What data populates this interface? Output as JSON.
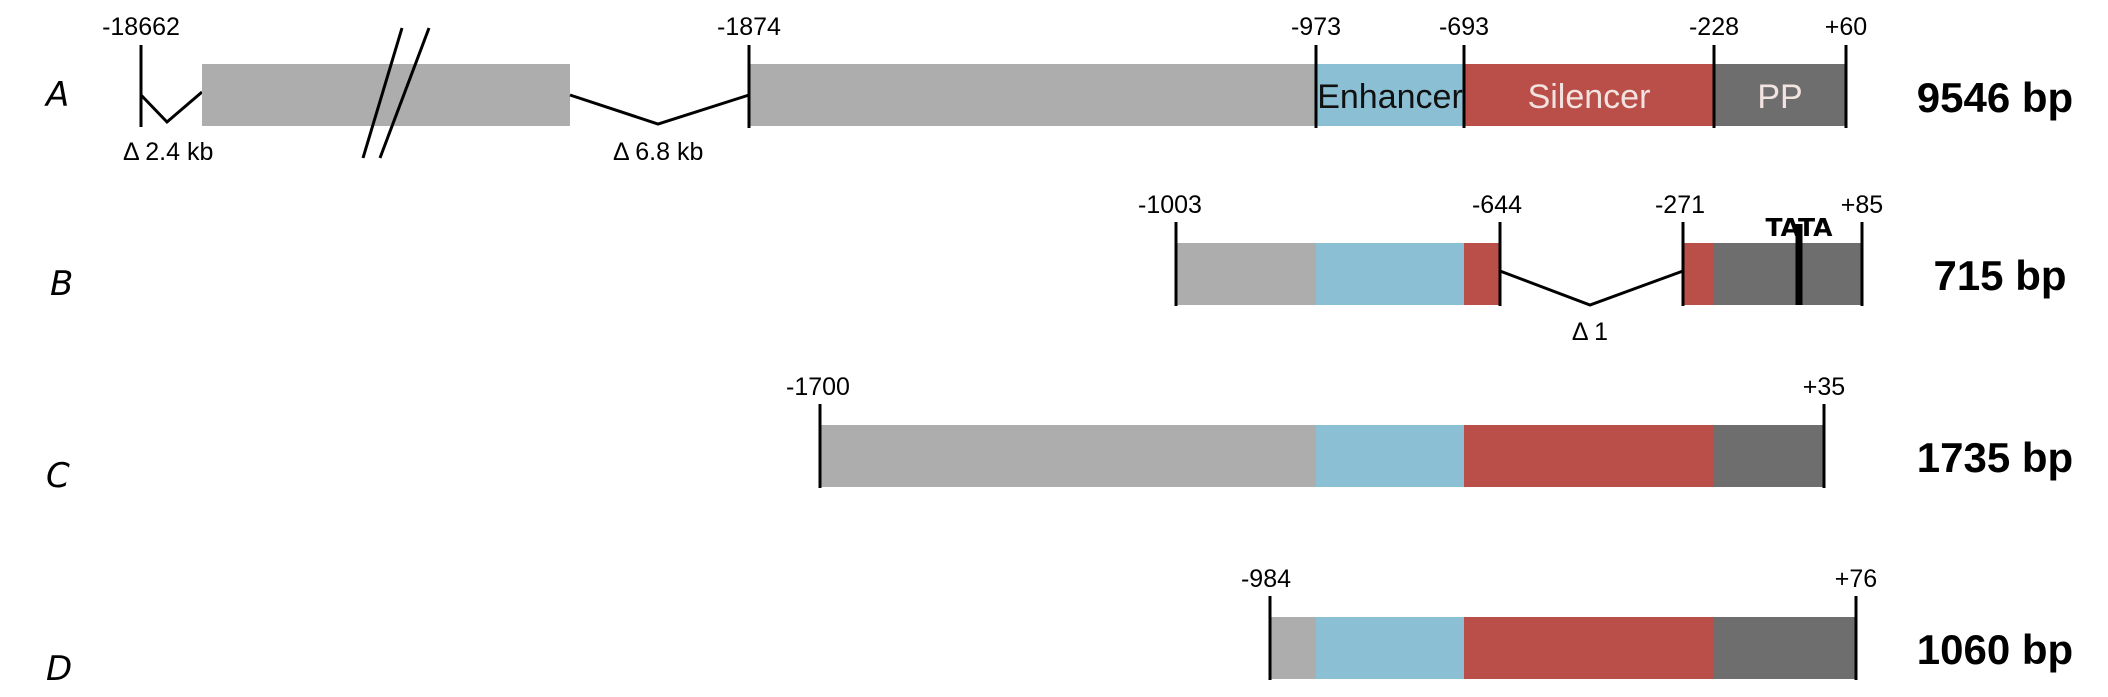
{
  "colors": {
    "upstream": "#adadad",
    "enhancer": "#8bbfd4",
    "silencer": "#b94f48",
    "pp": "#6e6e6e",
    "line": "#000000"
  },
  "labels": {
    "enhancer": "Enhancer",
    "silencer": "Silencer",
    "pp": "PP",
    "tata": "TATA"
  },
  "rows": [
    {
      "letter": "A",
      "size": "9546 bp",
      "coords": [
        "-18662",
        "-1874",
        "-973",
        "-693",
        "-228",
        "+60"
      ],
      "deletions": [
        "Δ 2.4 kb",
        "Δ 6.8 kb"
      ]
    },
    {
      "letter": "B",
      "size": "715 bp",
      "coords": [
        "-1003",
        "-644",
        "-271",
        "+85"
      ],
      "deletions": [
        "Δ 1"
      ]
    },
    {
      "letter": "C",
      "size": "1735 bp",
      "coords": [
        "-1700",
        "+35"
      ],
      "deletions": []
    },
    {
      "letter": "D",
      "size": "1060 bp",
      "coords": [
        "-984",
        "+76"
      ],
      "deletions": []
    }
  ]
}
